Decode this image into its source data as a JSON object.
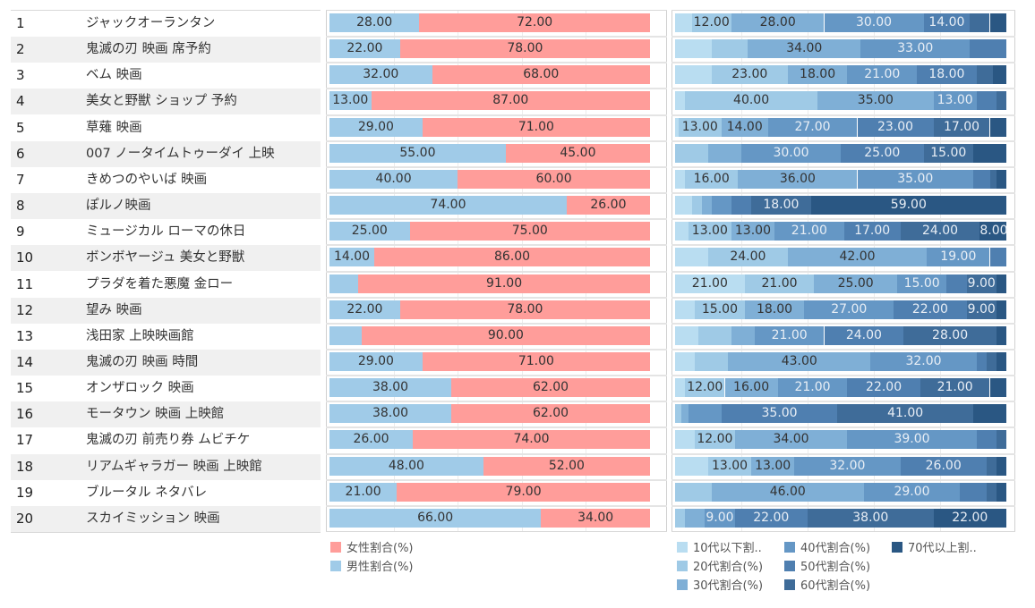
{
  "rows": [
    {
      "rank": "1",
      "title": "ジャックオーランタン"
    },
    {
      "rank": "2",
      "title": "鬼滅の刃 映画 席予約"
    },
    {
      "rank": "3",
      "title": "ベム 映画"
    },
    {
      "rank": "4",
      "title": "美女と野獣 ショップ 予約"
    },
    {
      "rank": "5",
      "title": "草薙 映画"
    },
    {
      "rank": "6",
      "title": "007 ノータイムトゥーダイ 上映"
    },
    {
      "rank": "7",
      "title": "きめつのやいば 映画"
    },
    {
      "rank": "8",
      "title": "ぽルノ映画"
    },
    {
      "rank": "9",
      "title": "ミュージカル ローマの休日"
    },
    {
      "rank": "10",
      "title": "ボンボヤージュ 美女と野獣"
    },
    {
      "rank": "11",
      "title": "プラダを着た悪魔 金ロー"
    },
    {
      "rank": "12",
      "title": "望み 映画"
    },
    {
      "rank": "13",
      "title": "浅田家 上映映画館"
    },
    {
      "rank": "14",
      "title": "鬼滅の刃 映画 時間"
    },
    {
      "rank": "15",
      "title": "オンザロック 映画"
    },
    {
      "rank": "16",
      "title": "モータウン 映画 上映館"
    },
    {
      "rank": "17",
      "title": "鬼滅の刃 前売り券 ムビチケ"
    },
    {
      "rank": "18",
      "title": "リアムギャラガー 映画 上映館"
    },
    {
      "rank": "19",
      "title": "ブルータル ネタバレ"
    },
    {
      "rank": "20",
      "title": "スカイミッション 映画"
    }
  ],
  "chart_data": [
    {
      "type": "bar",
      "stacked": true,
      "orientation": "horizontal",
      "title": "",
      "xlabel": "",
      "ylabel": "",
      "xlim": [
        0,
        100
      ],
      "categories": [
        "1",
        "2",
        "3",
        "4",
        "5",
        "6",
        "7",
        "8",
        "9",
        "10",
        "11",
        "12",
        "13",
        "14",
        "15",
        "16",
        "17",
        "18",
        "19",
        "20"
      ],
      "series": [
        {
          "name": "男性割合(%)",
          "color": "#a0cbe8",
          "values": [
            28,
            22,
            32,
            13,
            29,
            55,
            40,
            74,
            25,
            14,
            9,
            22,
            10,
            29,
            38,
            38,
            26,
            48,
            21,
            66
          ],
          "labeled": [
            true,
            true,
            true,
            true,
            true,
            true,
            true,
            true,
            true,
            true,
            false,
            true,
            false,
            true,
            true,
            true,
            true,
            true,
            true,
            true
          ]
        },
        {
          "name": "女性割合(%)",
          "color": "#ff9d9a",
          "values": [
            72,
            78,
            68,
            87,
            71,
            45,
            60,
            26,
            75,
            86,
            91,
            78,
            90,
            71,
            62,
            62,
            74,
            52,
            79,
            34
          ],
          "labeled": [
            true,
            true,
            true,
            true,
            true,
            true,
            true,
            true,
            true,
            true,
            true,
            true,
            true,
            true,
            true,
            true,
            true,
            true,
            true,
            true
          ]
        }
      ],
      "legend": {
        "position": "bottom-left",
        "entries": [
          "女性割合(%)",
          "男性割合(%)"
        ]
      },
      "value_format": "0.00",
      "grid": true
    },
    {
      "type": "bar",
      "stacked": true,
      "orientation": "horizontal",
      "title": "",
      "xlabel": "",
      "ylabel": "",
      "xlim": [
        0,
        100
      ],
      "categories": [
        "1",
        "2",
        "3",
        "4",
        "5",
        "6",
        "7",
        "8",
        "9",
        "10",
        "11",
        "12",
        "13",
        "14",
        "15",
        "16",
        "17",
        "18",
        "19",
        "20"
      ],
      "series": [
        {
          "name": "10代以下割合(%)",
          "color": "#b9ddf1",
          "values": [
            5,
            11,
            11,
            3,
            1,
            0,
            3,
            5,
            4,
            10,
            21,
            6,
            7,
            6,
            3,
            0,
            6,
            10,
            0,
            0
          ],
          "labeled": [
            false,
            false,
            false,
            false,
            false,
            false,
            false,
            false,
            false,
            false,
            true,
            false,
            false,
            false,
            false,
            false,
            false,
            false,
            false,
            false
          ]
        },
        {
          "name": "20代割合(%)",
          "color": "#9fcae6",
          "values": [
            12,
            11,
            23,
            40,
            13,
            10,
            16,
            3,
            13,
            24,
            21,
            15,
            10,
            10,
            12,
            2,
            12,
            13,
            11,
            3
          ],
          "labeled": [
            true,
            false,
            true,
            true,
            true,
            false,
            true,
            false,
            true,
            true,
            true,
            true,
            false,
            false,
            true,
            false,
            true,
            true,
            false,
            false
          ]
        },
        {
          "name": "30代割合(%)",
          "color": "#7fafd6",
          "values": [
            28,
            34,
            18,
            35,
            14,
            10,
            36,
            3,
            13,
            42,
            25,
            18,
            7,
            43,
            16,
            2,
            34,
            13,
            46,
            6
          ],
          "labeled": [
            true,
            true,
            true,
            true,
            true,
            false,
            true,
            false,
            true,
            true,
            true,
            true,
            false,
            true,
            true,
            false,
            true,
            true,
            true,
            false
          ]
        },
        {
          "name": "40代割合(%)",
          "color": "#6597c5",
          "values": [
            30,
            33,
            21,
            13,
            27,
            30,
            35,
            6,
            21,
            19,
            15,
            27,
            21,
            32,
            21,
            10,
            39,
            32,
            29,
            9
          ],
          "labeled": [
            true,
            true,
            true,
            true,
            true,
            true,
            true,
            false,
            true,
            true,
            true,
            true,
            true,
            true,
            true,
            false,
            true,
            true,
            true,
            true
          ]
        },
        {
          "name": "50代割合(%)",
          "color": "#4f7fb0",
          "values": [
            14,
            11,
            18,
            6,
            23,
            25,
            5,
            6,
            17,
            5,
            6,
            22,
            24,
            3,
            22,
            35,
            6,
            26,
            8,
            22
          ],
          "labeled": [
            true,
            false,
            true,
            false,
            true,
            true,
            false,
            false,
            true,
            false,
            false,
            true,
            true,
            false,
            true,
            true,
            false,
            true,
            false,
            true
          ]
        },
        {
          "name": "60代割合(%)",
          "color": "#3f6c99",
          "values": [
            6,
            0,
            5,
            3,
            17,
            15,
            2,
            18,
            24,
            0,
            9,
            9,
            28,
            3,
            21,
            41,
            3,
            3,
            3,
            38
          ],
          "labeled": [
            false,
            false,
            false,
            false,
            true,
            true,
            false,
            true,
            true,
            false,
            true,
            true,
            true,
            false,
            true,
            true,
            false,
            false,
            false,
            true
          ]
        },
        {
          "name": "70代以上割合(%)",
          "color": "#2a5783",
          "values": [
            5,
            0,
            4,
            0,
            5,
            10,
            3,
            59,
            8,
            0,
            3,
            3,
            3,
            3,
            5,
            10,
            0,
            3,
            3,
            22
          ],
          "labeled": [
            false,
            false,
            false,
            false,
            false,
            false,
            false,
            true,
            true,
            false,
            false,
            false,
            false,
            false,
            false,
            false,
            false,
            false,
            false,
            true
          ]
        }
      ],
      "legend": {
        "position": "bottom",
        "entries": [
          "10代以下割..",
          "20代割合(%)",
          "30代割合(%)",
          "40代割合(%)",
          "50代割合(%)",
          "60代割合(%)",
          "70代以上割.."
        ]
      },
      "value_format": "0.00",
      "grid": true
    }
  ]
}
